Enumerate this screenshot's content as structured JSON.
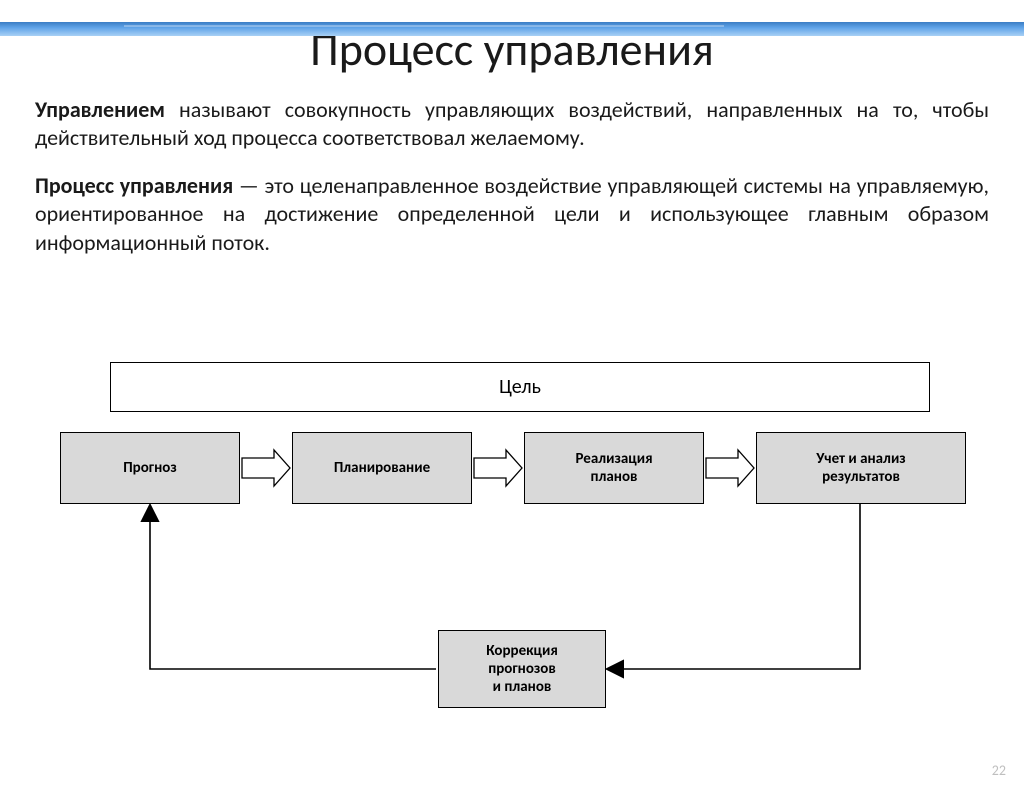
{
  "title": "Процесс управления",
  "para1_bold": "Управлением",
  "para1_rest": " называют совокупность управляющих воздействий, направленных на то, чтобы действительный ход процесса соответствовал желаемому.",
  "para2_bold": "Процесс управления",
  "para2_rest": " — это целенаправленное воздействие управляющей системы на управляемую, ориентированное на достижение определенной цели и использующее главным образом информационный поток.",
  "diagram": {
    "goal": "Цель",
    "nodes": {
      "prognosis": "Прогноз",
      "planning": "Планирование",
      "realization": "Реализация\nпланов",
      "accounting": "Учет и анализ\nрезультатов",
      "correction": "Коррекция\nпрогнозов\nи планов"
    },
    "box_fill": "#d9d9d9",
    "goal_fill": "#ffffff",
    "border_color": "#000000",
    "line_color": "#000000",
    "label_fontsize": 15,
    "goal_fontsize": 20,
    "arrows": [
      {
        "from": "b1",
        "to": "b2",
        "type": "block"
      },
      {
        "from": "b2",
        "to": "b3",
        "type": "block"
      },
      {
        "from": "b3",
        "to": "b4",
        "type": "block"
      },
      {
        "from": "b4",
        "to": "correction",
        "type": "line"
      },
      {
        "from": "correction",
        "to": "b1",
        "type": "line"
      }
    ]
  },
  "page_number": "22",
  "colors": {
    "header_gradient_top": "#3b7dc4",
    "header_gradient_bottom": "#a8d0f5",
    "text": "#1a1a1a",
    "page_num": "#bfbfbf"
  }
}
